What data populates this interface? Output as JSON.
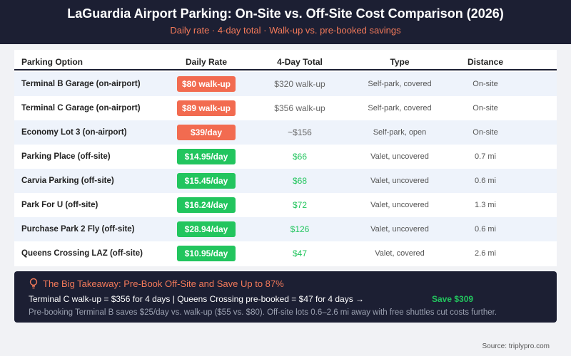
{
  "header": {
    "title": "LaGuardia Airport Parking: On-Site vs. Off-Site Cost Comparison (2026)",
    "subtitle": "Daily rate · 4-day total · Walk-up vs. pre-booked savings"
  },
  "table": {
    "columns": [
      "Parking Option",
      "Daily Rate",
      "4-Day Total",
      "Type",
      "Distance"
    ],
    "rows": [
      {
        "name": "Terminal B Garage (on-airport)",
        "rate": "$80 walk-up",
        "total": "$320 walk-up",
        "type": "Self-park, covered",
        "distance": "On-site",
        "rate_color": "#f26b50",
        "total_color": "#666666"
      },
      {
        "name": "Terminal C Garage (on-airport)",
        "rate": "$89 walk-up",
        "total": "$356 walk-up",
        "type": "Self-park, covered",
        "distance": "On-site",
        "rate_color": "#f26b50",
        "total_color": "#666666"
      },
      {
        "name": "Economy Lot 3 (on-airport)",
        "rate": "$39/day",
        "total": "~$156",
        "type": "Self-park, open",
        "distance": "On-site",
        "rate_color": "#f26b50",
        "total_color": "#666666"
      },
      {
        "name": "Parking Place (off-site)",
        "rate": "$14.95/day",
        "total": "$66",
        "type": "Valet, uncovered",
        "distance": "0.7 mi",
        "rate_color": "#22c55e",
        "total_color": "#22c55e"
      },
      {
        "name": "Carvia Parking (off-site)",
        "rate": "$15.45/day",
        "total": "$68",
        "type": "Valet, uncovered",
        "distance": "0.6 mi",
        "rate_color": "#22c55e",
        "total_color": "#22c55e"
      },
      {
        "name": "Park For U (off-site)",
        "rate": "$16.24/day",
        "total": "$72",
        "type": "Valet, uncovered",
        "distance": "1.3 mi",
        "rate_color": "#22c55e",
        "total_color": "#22c55e"
      },
      {
        "name": "Purchase Park 2 Fly (off-site)",
        "rate": "$28.94/day",
        "total": "$126",
        "type": "Valet, uncovered",
        "distance": "0.6 mi",
        "rate_color": "#22c55e",
        "total_color": "#22c55e"
      },
      {
        "name": "Queens Crossing LAZ (off-site)",
        "rate": "$10.95/day",
        "total": "$47",
        "type": "Valet, covered",
        "distance": "2.6 mi",
        "rate_color": "#22c55e",
        "total_color": "#22c55e"
      }
    ]
  },
  "takeaway": {
    "title": "The Big Takeaway: Pre-Book Off-Site and Save Up to 87%",
    "line": "Terminal C walk-up = $356 for 4 days | Queens Crossing pre-booked = $47 for 4 days →",
    "savings": "Save $309",
    "note": "Pre-booking Terminal B saves $25/day vs. walk-up ($55 vs. $80). Off-site lots 0.6–2.6 mi away with free shuttles cut costs further."
  },
  "footer": {
    "source": "Source: triplypro.com"
  }
}
